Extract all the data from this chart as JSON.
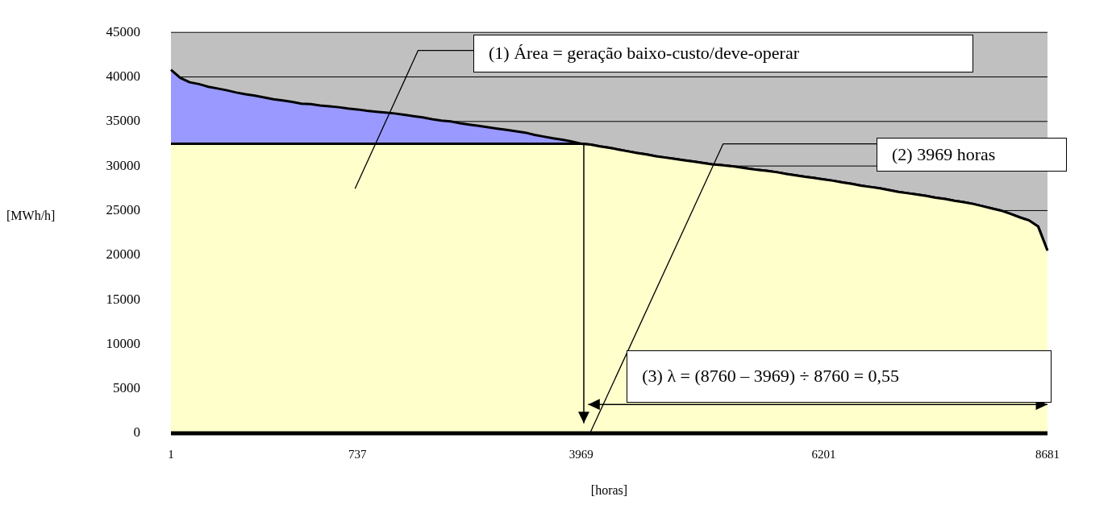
{
  "chart_data": {
    "type": "area",
    "xlabel": "[horas]",
    "ylabel": "[MWh/h]",
    "categories": [
      "1",
      null,
      null,
      null,
      null,
      null,
      null,
      null,
      null,
      null,
      null,
      null,
      null,
      null,
      null,
      null,
      null,
      null,
      null,
      null,
      "737",
      null,
      null,
      null,
      null,
      null,
      null,
      null,
      null,
      null,
      null,
      null,
      null,
      null,
      null,
      null,
      null,
      null,
      null,
      null,
      null,
      null,
      null,
      null,
      "3969",
      null,
      null,
      null,
      null,
      null,
      null,
      null,
      null,
      null,
      null,
      null,
      null,
      null,
      null,
      null,
      null,
      null,
      null,
      null,
      null,
      null,
      null,
      null,
      null,
      null,
      "6201",
      null,
      null,
      null,
      null,
      null,
      null,
      null,
      null,
      null,
      null,
      null,
      null,
      null,
      null,
      null,
      null,
      null,
      null,
      null,
      null,
      null,
      null,
      null,
      "8681"
    ],
    "series": [
      {
        "color": "#9999ff",
        "values": [
          40800,
          39900,
          39400,
          39200,
          38900,
          38700,
          38500,
          38250,
          38050,
          37900,
          37700,
          37500,
          37350,
          37200,
          37000,
          36950,
          36800,
          36700,
          36600,
          36450,
          36350,
          36200,
          36100,
          36000,
          35900,
          35750,
          35600,
          35450,
          35250,
          35100,
          35000,
          34800,
          34650,
          34500,
          34350,
          34200,
          34050,
          33900,
          33750,
          33500,
          33300,
          33100,
          32950,
          32750,
          32500,
          32400,
          32200,
          32050,
          31850,
          31650,
          31450,
          31300,
          31100,
          30950,
          30800,
          30650,
          30500,
          30350,
          30200,
          30100,
          30000,
          29850,
          29700,
          29550,
          29450,
          29300,
          29100,
          28950,
          28800,
          28650,
          28500,
          28350,
          28150,
          28000,
          27800,
          27650,
          27500,
          27300,
          27100,
          26950,
          26800,
          26650,
          26450,
          26300,
          26100,
          25950,
          25750,
          25500,
          25250,
          25000,
          24650,
          24250,
          23900,
          23200,
          20500
        ]
      },
      {
        "color": "#ffffcc",
        "values": [
          32500,
          32500,
          32500,
          32500,
          32500,
          32500,
          32500,
          32500,
          32500,
          32500,
          32500,
          32500,
          32500,
          32500,
          32500,
          32500,
          32500,
          32500,
          32500,
          32500,
          32500,
          32500,
          32500,
          32500,
          32500,
          32500,
          32500,
          32500,
          32500,
          32500,
          32500,
          32500,
          32500,
          32500,
          32500,
          32500,
          32500,
          32500,
          32500,
          32500,
          32500,
          32500,
          32500,
          32500,
          32500,
          32400,
          32200,
          32050,
          31850,
          31650,
          31450,
          31300,
          31100,
          30950,
          30800,
          30650,
          30500,
          30350,
          30200,
          30100,
          30000,
          29850,
          29700,
          29550,
          29450,
          29300,
          29100,
          28950,
          28800,
          28650,
          28500,
          28350,
          28150,
          28000,
          27800,
          27650,
          27500,
          27300,
          27100,
          26950,
          26800,
          26650,
          26450,
          26300,
          26100,
          25950,
          25750,
          25500,
          25250,
          25000,
          24650,
          24250,
          23900,
          23200,
          20500
        ]
      }
    ],
    "ylim": [
      0,
      45000
    ],
    "yticks": [
      0,
      5000,
      10000,
      15000,
      20000,
      25000,
      30000,
      35000,
      40000,
      45000
    ],
    "grid": "y",
    "legend": false,
    "annotations": [
      "(1) Área = geração baixo-custo/deve-operar",
      "(2) 3969 horas",
      "(3) λ = (8760 – 3969) ÷ 8760 = 0,55"
    ]
  }
}
